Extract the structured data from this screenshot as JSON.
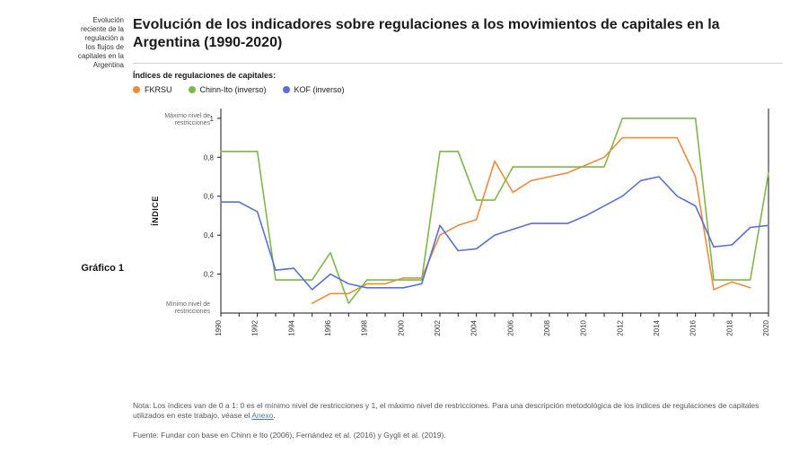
{
  "sidebar": {
    "tag_lines": [
      "Evolución",
      "reciente de la",
      "regulación a",
      "los flujos de",
      "capitales en la",
      "Argentina"
    ],
    "figure_label": "Gráfico 1"
  },
  "title": "Evolución de los indicadores sobre regulaciones a los movimientos de capitales en la Argentina (1990-2020)",
  "legend": {
    "heading": "Índices de regulaciones de capitales:",
    "items": [
      {
        "id": "fkrsu",
        "label": "FKRSU",
        "color": "#f08a3c"
      },
      {
        "id": "chinnito",
        "label": "Chinn-Ito (inverso)",
        "color": "#7fb84a"
      },
      {
        "id": "kof",
        "label": "KOF (inverso)",
        "color": "#5a6fd6"
      }
    ]
  },
  "chart": {
    "type": "line",
    "background_color": "#ffffff",
    "axis_color": "#1a1a1a",
    "tick_color": "#1a1a1a",
    "tick_fontsize": 8,
    "axis_title": "ÍNDICE",
    "line_width": 1.6,
    "x": {
      "ticks": [
        1990,
        1991,
        1992,
        1993,
        1994,
        1995,
        1996,
        1997,
        1998,
        1999,
        2000,
        2001,
        2002,
        2003,
        2004,
        2005,
        2006,
        2007,
        2008,
        2009,
        2010,
        2011,
        2012,
        2013,
        2014,
        2015,
        2016,
        2017,
        2018,
        2019,
        2020
      ],
      "labels": [
        1990,
        1992,
        1994,
        1996,
        1998,
        2000,
        2002,
        2004,
        2006,
        2008,
        2010,
        2012,
        2014,
        2016,
        2018,
        2020
      ],
      "xlim": [
        1990,
        2020
      ]
    },
    "y": {
      "ticks": [
        0.2,
        0.4,
        0.6,
        0.8,
        1.0
      ],
      "labels": [
        "0,2",
        "0,4",
        "0,6",
        "0,8",
        "1"
      ],
      "ylim": [
        0.0,
        1.05
      ],
      "grid": false,
      "annotations": {
        "top": "Máximo nivel de restricciones",
        "bottom": "Mínimo nivel de restricciones"
      }
    },
    "series": [
      {
        "id": "fkrsu",
        "color": "#f08a3c",
        "years": [
          1995,
          1996,
          1997,
          1998,
          1999,
          2000,
          2001,
          2002,
          2003,
          2004,
          2005,
          2006,
          2007,
          2008,
          2009,
          2010,
          2011,
          2012,
          2013,
          2014,
          2015,
          2016,
          2017,
          2018,
          2019
        ],
        "values": [
          0.05,
          0.1,
          0.1,
          0.15,
          0.15,
          0.18,
          0.18,
          0.4,
          0.45,
          0.48,
          0.78,
          0.62,
          0.68,
          0.7,
          0.72,
          0.76,
          0.8,
          0.9,
          0.9,
          0.9,
          0.9,
          0.7,
          0.12,
          0.16,
          0.13
        ]
      },
      {
        "id": "chinnito",
        "color": "#7fb84a",
        "years": [
          1990,
          1991,
          1992,
          1993,
          1994,
          1995,
          1996,
          1997,
          1998,
          1999,
          2000,
          2001,
          2002,
          2003,
          2004,
          2005,
          2006,
          2007,
          2008,
          2009,
          2010,
          2011,
          2012,
          2013,
          2014,
          2015,
          2016,
          2017,
          2018,
          2019,
          2020
        ],
        "values": [
          0.83,
          0.83,
          0.83,
          0.17,
          0.17,
          0.17,
          0.31,
          0.05,
          0.17,
          0.17,
          0.17,
          0.17,
          0.83,
          0.83,
          0.58,
          0.58,
          0.75,
          0.75,
          0.75,
          0.75,
          0.75,
          0.75,
          1.0,
          1.0,
          1.0,
          1.0,
          1.0,
          0.17,
          0.17,
          0.17,
          0.72
        ]
      },
      {
        "id": "kof",
        "color": "#5a6fd6",
        "years": [
          1990,
          1991,
          1992,
          1993,
          1994,
          1995,
          1996,
          1997,
          1998,
          1999,
          2000,
          2001,
          2002,
          2003,
          2004,
          2005,
          2006,
          2007,
          2008,
          2009,
          2010,
          2011,
          2012,
          2013,
          2014,
          2015,
          2016,
          2017,
          2018,
          2019,
          2020
        ],
        "values": [
          0.57,
          0.57,
          0.52,
          0.22,
          0.23,
          0.12,
          0.2,
          0.15,
          0.13,
          0.13,
          0.13,
          0.15,
          0.45,
          0.32,
          0.33,
          0.4,
          0.43,
          0.46,
          0.46,
          0.46,
          0.5,
          0.55,
          0.6,
          0.68,
          0.7,
          0.6,
          0.55,
          0.34,
          0.35,
          0.44,
          0.45
        ]
      }
    ]
  },
  "note": {
    "prefix": "Nota: Los índices van de 0 a 1: 0 es el mínimo nivel de restricciones y 1, el máximo nivel de restricciones. Para una descripción metodológica de los índices de regulaciones de capitales utilizados en este trabajo, véase el ",
    "link_text": "Anexo",
    "suffix": "."
  },
  "source": "Fuente: Fundar con base en Chinn e Ito (2006), Fernández et al. (2016) y Gygli et al. (2019)."
}
